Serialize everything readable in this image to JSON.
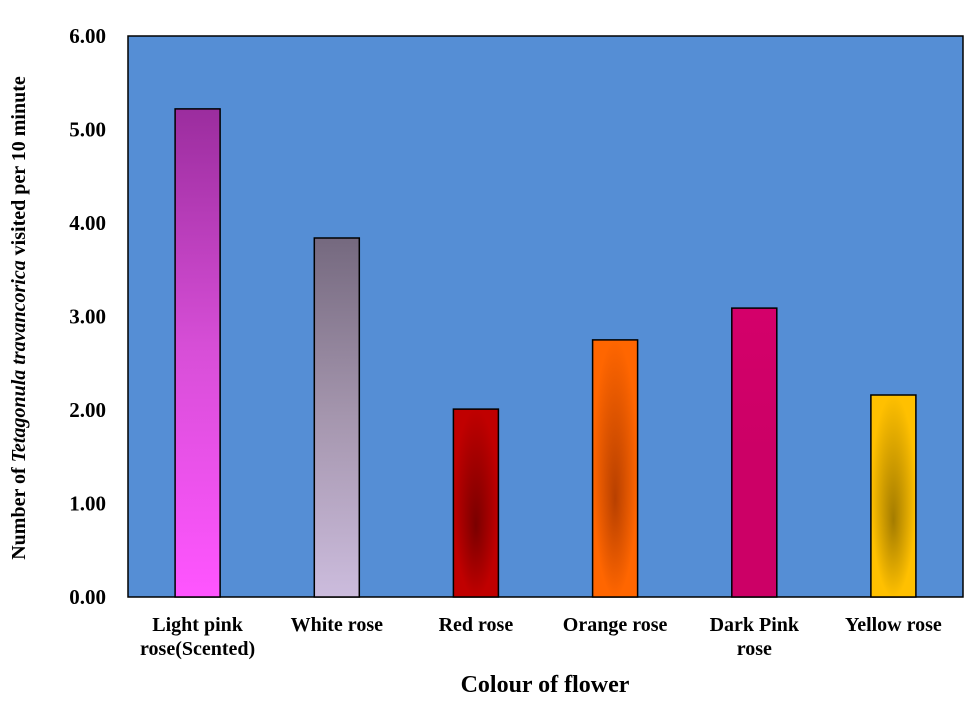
{
  "chart_data": {
    "type": "bar",
    "categories": [
      [
        "Light pink",
        "rose(Scented)"
      ],
      [
        "White rose"
      ],
      [
        "Red rose"
      ],
      [
        "Orange rose"
      ],
      [
        "Dark Pink",
        "rose"
      ],
      [
        "Yellow rose"
      ]
    ],
    "values": [
      5.22,
      3.84,
      2.01,
      2.75,
      3.09,
      2.16
    ],
    "ylim": [
      0,
      6
    ],
    "yticks": [
      "0.00",
      "1.00",
      "2.00",
      "3.00",
      "4.00",
      "5.00",
      "6.00"
    ],
    "xlabel": "Colour of flower",
    "ylabel": {
      "part1": "Number of ",
      "part2": "Tetagonula travancorica",
      "part3": " visited per 10 minute"
    },
    "grid": false,
    "legend": "none",
    "plot_background": "#558ED5",
    "bar_colors": [
      {
        "top": "#9B2D9E",
        "mid": "#D84FD8",
        "bottom": "#FF55FF",
        "style": "linear"
      },
      {
        "top": "#75697F",
        "mid": "#A596AE",
        "bottom": "#CCBCDD",
        "style": "linear"
      },
      {
        "edge": "#C00000",
        "center": "#7A0000",
        "style": "radial"
      },
      {
        "edge": "#FF6600",
        "center": "#B84000",
        "style": "radial"
      },
      {
        "top": "#D4006A",
        "mid": "#CC0066",
        "bottom": "#CC0066",
        "style": "linear"
      },
      {
        "edge": "#FFC000",
        "center": "#A47C00",
        "style": "radial"
      }
    ]
  }
}
